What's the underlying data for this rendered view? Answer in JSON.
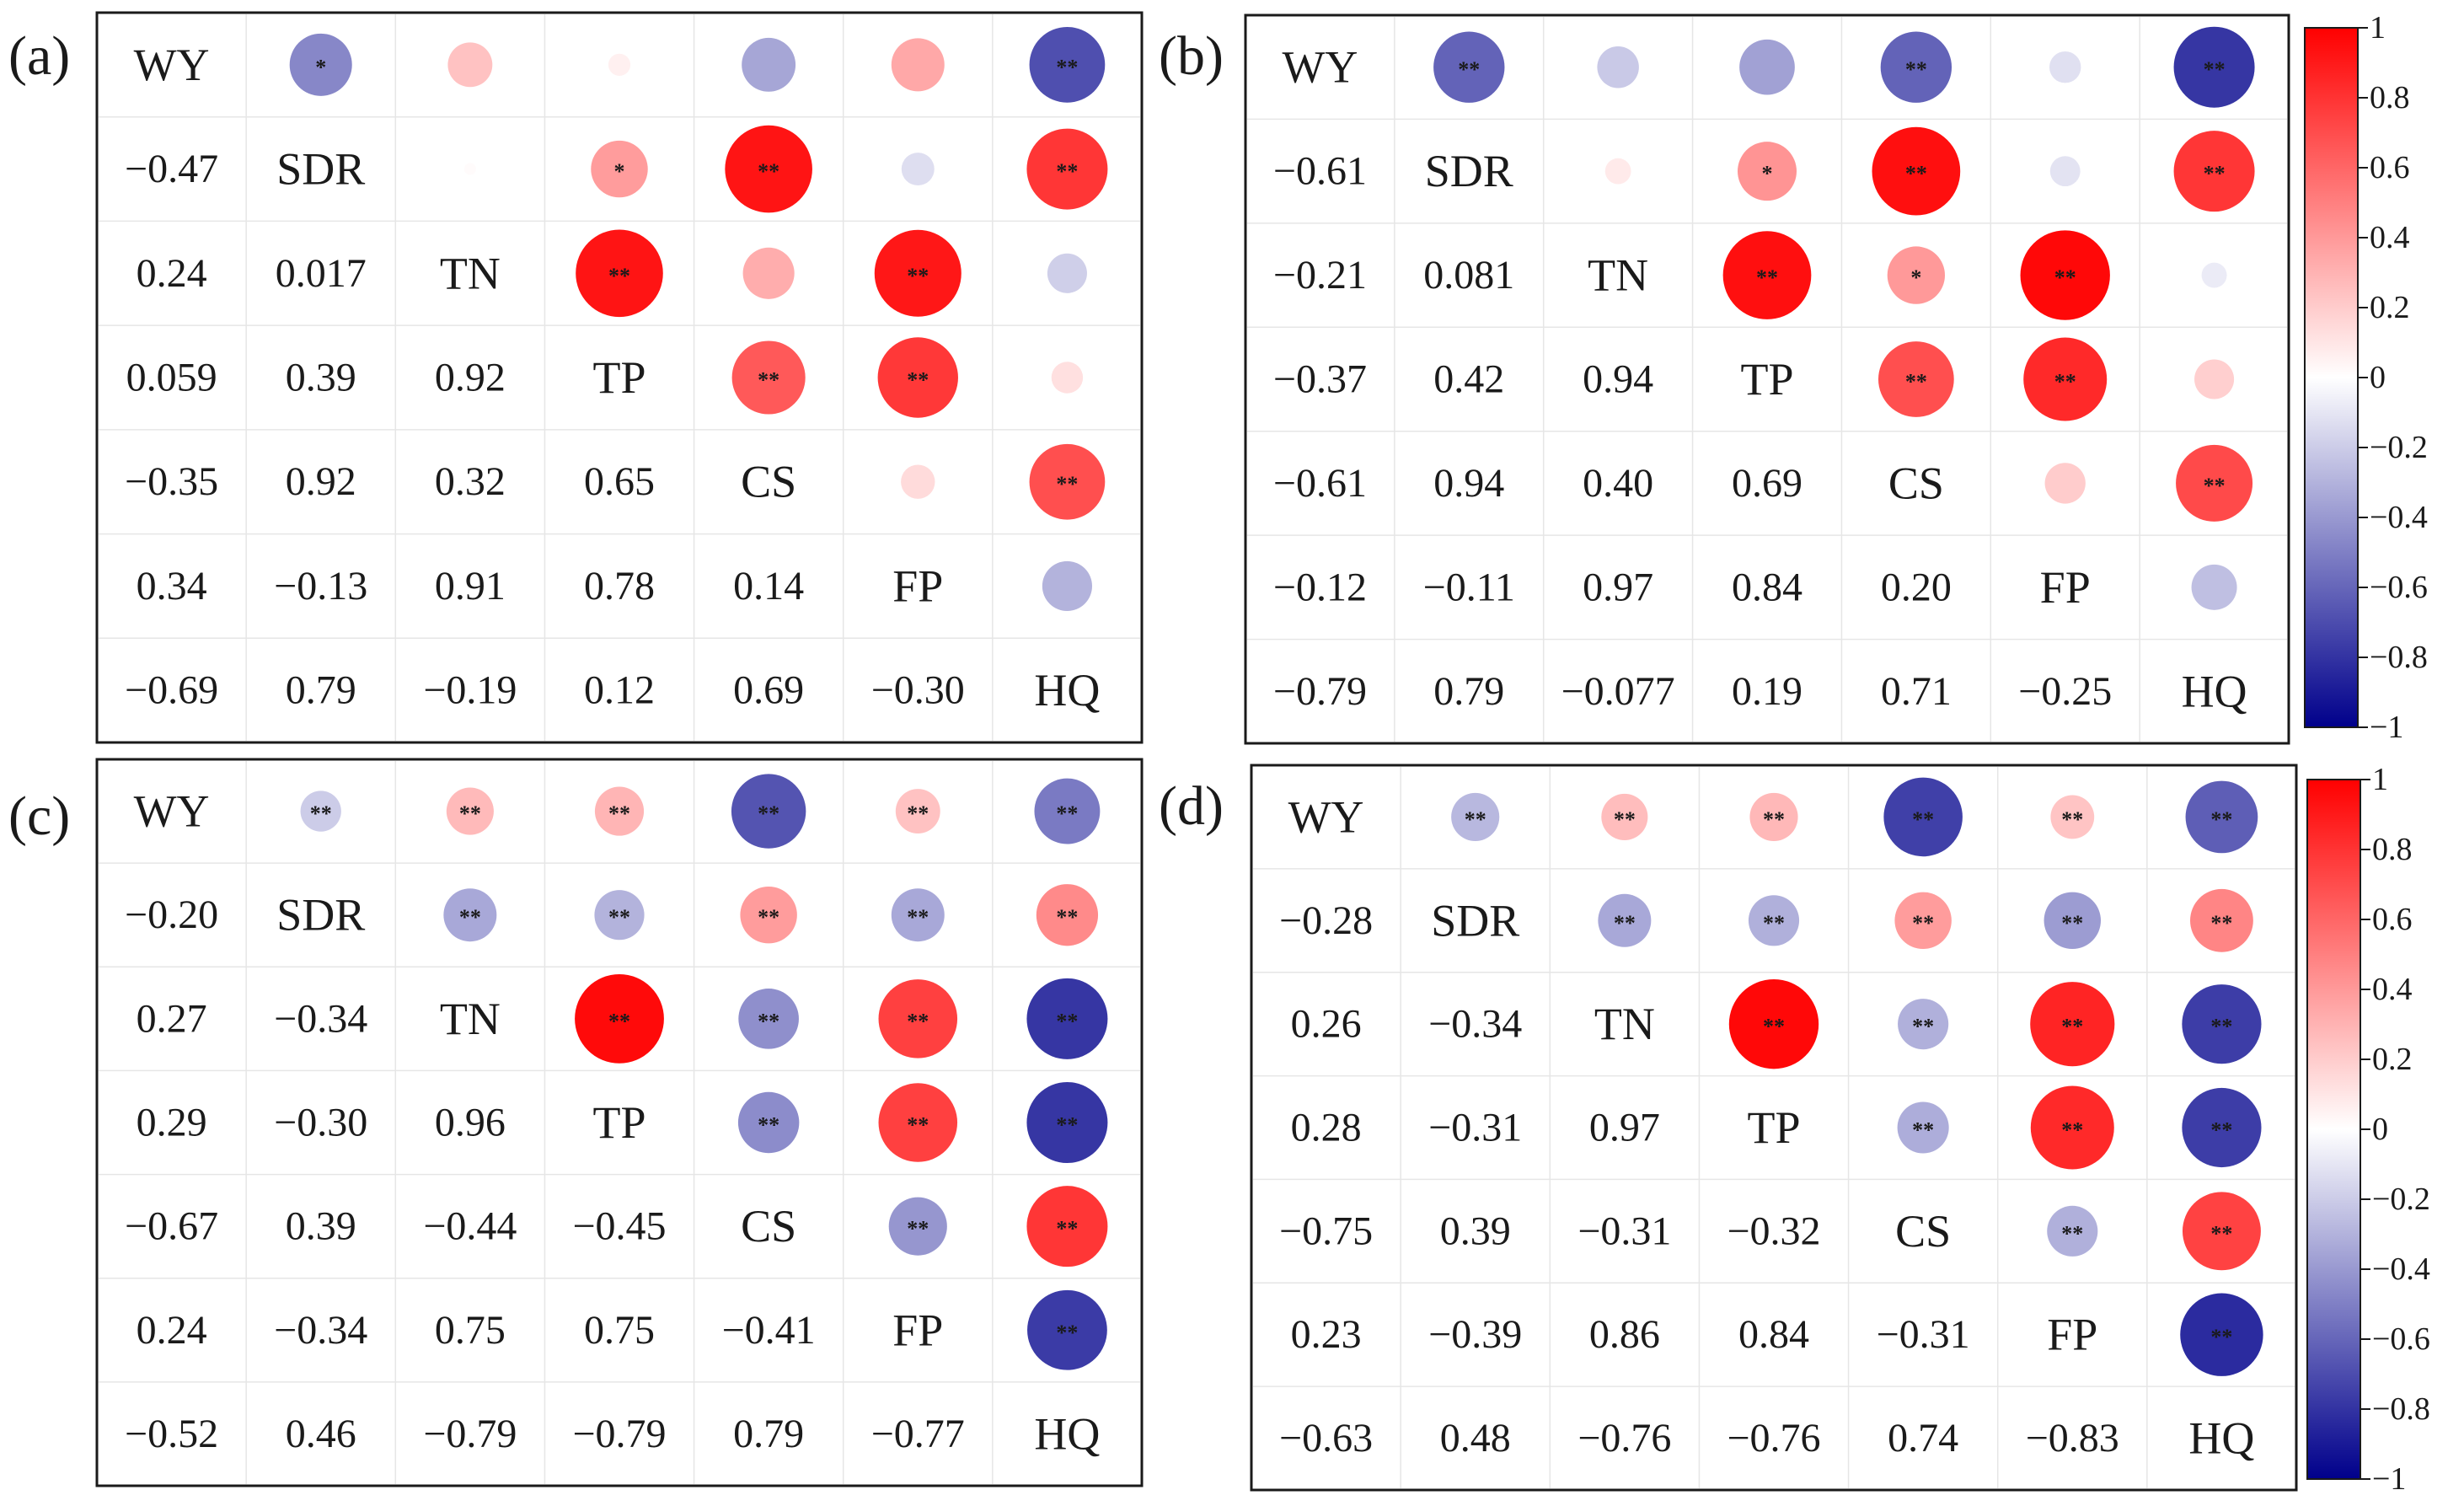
{
  "chart_data": [
    {
      "type": "heatmap",
      "panel_label": "(a)",
      "variables": [
        "WY",
        "SDR",
        "TN",
        "TP",
        "CS",
        "FP",
        "HQ"
      ],
      "upper": [
        {
          "row": 0,
          "col": 1,
          "value": -0.47,
          "sig": "*"
        },
        {
          "row": 0,
          "col": 2,
          "value": 0.24,
          "sig": ""
        },
        {
          "row": 0,
          "col": 3,
          "value": 0.059,
          "sig": ""
        },
        {
          "row": 0,
          "col": 4,
          "value": -0.35,
          "sig": ""
        },
        {
          "row": 0,
          "col": 5,
          "value": 0.34,
          "sig": ""
        },
        {
          "row": 0,
          "col": 6,
          "value": -0.69,
          "sig": "**"
        },
        {
          "row": 1,
          "col": 2,
          "value": 0.017,
          "sig": ""
        },
        {
          "row": 1,
          "col": 3,
          "value": 0.39,
          "sig": "*"
        },
        {
          "row": 1,
          "col": 4,
          "value": 0.92,
          "sig": "**"
        },
        {
          "row": 1,
          "col": 5,
          "value": -0.13,
          "sig": ""
        },
        {
          "row": 1,
          "col": 6,
          "value": 0.79,
          "sig": "**"
        },
        {
          "row": 2,
          "col": 3,
          "value": 0.92,
          "sig": "**"
        },
        {
          "row": 2,
          "col": 4,
          "value": 0.32,
          "sig": ""
        },
        {
          "row": 2,
          "col": 5,
          "value": 0.91,
          "sig": "**"
        },
        {
          "row": 2,
          "col": 6,
          "value": -0.19,
          "sig": ""
        },
        {
          "row": 3,
          "col": 4,
          "value": 0.65,
          "sig": "**"
        },
        {
          "row": 3,
          "col": 5,
          "value": 0.78,
          "sig": "**"
        },
        {
          "row": 3,
          "col": 6,
          "value": 0.12,
          "sig": ""
        },
        {
          "row": 4,
          "col": 5,
          "value": 0.14,
          "sig": ""
        },
        {
          "row": 4,
          "col": 6,
          "value": 0.69,
          "sig": "**"
        },
        {
          "row": 5,
          "col": 6,
          "value": -0.3,
          "sig": ""
        }
      ],
      "lower": [
        {
          "row": 1,
          "col": 0,
          "text": "−0.47"
        },
        {
          "row": 2,
          "col": 0,
          "text": "0.24"
        },
        {
          "row": 2,
          "col": 1,
          "text": "0.017"
        },
        {
          "row": 3,
          "col": 0,
          "text": "0.059"
        },
        {
          "row": 3,
          "col": 1,
          "text": "0.39"
        },
        {
          "row": 3,
          "col": 2,
          "text": "0.92"
        },
        {
          "row": 4,
          "col": 0,
          "text": "−0.35"
        },
        {
          "row": 4,
          "col": 1,
          "text": "0.92"
        },
        {
          "row": 4,
          "col": 2,
          "text": "0.32"
        },
        {
          "row": 4,
          "col": 3,
          "text": "0.65"
        },
        {
          "row": 5,
          "col": 0,
          "text": "0.34"
        },
        {
          "row": 5,
          "col": 1,
          "text": "−0.13"
        },
        {
          "row": 5,
          "col": 2,
          "text": "0.91"
        },
        {
          "row": 5,
          "col": 3,
          "text": "0.78"
        },
        {
          "row": 5,
          "col": 4,
          "text": "0.14"
        },
        {
          "row": 6,
          "col": 0,
          "text": "−0.69"
        },
        {
          "row": 6,
          "col": 1,
          "text": "0.79"
        },
        {
          "row": 6,
          "col": 2,
          "text": "−0.19"
        },
        {
          "row": 6,
          "col": 3,
          "text": "0.12"
        },
        {
          "row": 6,
          "col": 4,
          "text": "0.69"
        },
        {
          "row": 6,
          "col": 5,
          "text": "−0.30"
        }
      ]
    },
    {
      "type": "heatmap",
      "panel_label": "(b)",
      "variables": [
        "WY",
        "SDR",
        "TN",
        "TP",
        "CS",
        "FP",
        "HQ"
      ],
      "upper": [
        {
          "row": 0,
          "col": 1,
          "value": -0.61,
          "sig": "**"
        },
        {
          "row": 0,
          "col": 2,
          "value": -0.21,
          "sig": ""
        },
        {
          "row": 0,
          "col": 3,
          "value": -0.37,
          "sig": ""
        },
        {
          "row": 0,
          "col": 4,
          "value": -0.61,
          "sig": "**"
        },
        {
          "row": 0,
          "col": 5,
          "value": -0.12,
          "sig": ""
        },
        {
          "row": 0,
          "col": 6,
          "value": -0.79,
          "sig": "**"
        },
        {
          "row": 1,
          "col": 2,
          "value": 0.081,
          "sig": ""
        },
        {
          "row": 1,
          "col": 3,
          "value": 0.42,
          "sig": "*"
        },
        {
          "row": 1,
          "col": 4,
          "value": 0.94,
          "sig": "**"
        },
        {
          "row": 1,
          "col": 5,
          "value": -0.11,
          "sig": ""
        },
        {
          "row": 1,
          "col": 6,
          "value": 0.79,
          "sig": "**"
        },
        {
          "row": 2,
          "col": 3,
          "value": 0.94,
          "sig": "**"
        },
        {
          "row": 2,
          "col": 4,
          "value": 0.4,
          "sig": "*"
        },
        {
          "row": 2,
          "col": 5,
          "value": 0.97,
          "sig": "**"
        },
        {
          "row": 2,
          "col": 6,
          "value": -0.077,
          "sig": ""
        },
        {
          "row": 3,
          "col": 4,
          "value": 0.69,
          "sig": "**"
        },
        {
          "row": 3,
          "col": 5,
          "value": 0.84,
          "sig": "**"
        },
        {
          "row": 3,
          "col": 6,
          "value": 0.19,
          "sig": ""
        },
        {
          "row": 4,
          "col": 5,
          "value": 0.2,
          "sig": ""
        },
        {
          "row": 4,
          "col": 6,
          "value": 0.71,
          "sig": "**"
        },
        {
          "row": 5,
          "col": 6,
          "value": -0.25,
          "sig": ""
        }
      ],
      "lower": [
        {
          "row": 1,
          "col": 0,
          "text": "−0.61"
        },
        {
          "row": 2,
          "col": 0,
          "text": "−0.21"
        },
        {
          "row": 2,
          "col": 1,
          "text": "0.081"
        },
        {
          "row": 3,
          "col": 0,
          "text": "−0.37"
        },
        {
          "row": 3,
          "col": 1,
          "text": "0.42"
        },
        {
          "row": 3,
          "col": 2,
          "text": "0.94"
        },
        {
          "row": 4,
          "col": 0,
          "text": "−0.61"
        },
        {
          "row": 4,
          "col": 1,
          "text": "0.94"
        },
        {
          "row": 4,
          "col": 2,
          "text": "0.40"
        },
        {
          "row": 4,
          "col": 3,
          "text": "0.69"
        },
        {
          "row": 5,
          "col": 0,
          "text": "−0.12"
        },
        {
          "row": 5,
          "col": 1,
          "text": "−0.11"
        },
        {
          "row": 5,
          "col": 2,
          "text": "0.97"
        },
        {
          "row": 5,
          "col": 3,
          "text": "0.84"
        },
        {
          "row": 5,
          "col": 4,
          "text": "0.20"
        },
        {
          "row": 6,
          "col": 0,
          "text": "−0.79"
        },
        {
          "row": 6,
          "col": 1,
          "text": "0.79"
        },
        {
          "row": 6,
          "col": 2,
          "text": "−0.077"
        },
        {
          "row": 6,
          "col": 3,
          "text": "0.19"
        },
        {
          "row": 6,
          "col": 4,
          "text": "0.71"
        },
        {
          "row": 6,
          "col": 5,
          "text": "−0.25"
        }
      ]
    },
    {
      "type": "heatmap",
      "panel_label": "(c)",
      "variables": [
        "WY",
        "SDR",
        "TN",
        "TP",
        "CS",
        "FP",
        "HQ"
      ],
      "upper": [
        {
          "row": 0,
          "col": 1,
          "value": -0.2,
          "sig": "**"
        },
        {
          "row": 0,
          "col": 2,
          "value": 0.27,
          "sig": "**"
        },
        {
          "row": 0,
          "col": 3,
          "value": 0.29,
          "sig": "**"
        },
        {
          "row": 0,
          "col": 4,
          "value": -0.67,
          "sig": "**"
        },
        {
          "row": 0,
          "col": 5,
          "value": 0.24,
          "sig": "**"
        },
        {
          "row": 0,
          "col": 6,
          "value": -0.52,
          "sig": "**"
        },
        {
          "row": 1,
          "col": 2,
          "value": -0.34,
          "sig": "**"
        },
        {
          "row": 1,
          "col": 3,
          "value": -0.3,
          "sig": "**"
        },
        {
          "row": 1,
          "col": 4,
          "value": 0.39,
          "sig": "**"
        },
        {
          "row": 1,
          "col": 5,
          "value": -0.34,
          "sig": "**"
        },
        {
          "row": 1,
          "col": 6,
          "value": 0.46,
          "sig": "**"
        },
        {
          "row": 2,
          "col": 3,
          "value": 0.96,
          "sig": "**"
        },
        {
          "row": 2,
          "col": 4,
          "value": -0.44,
          "sig": "**"
        },
        {
          "row": 2,
          "col": 5,
          "value": 0.75,
          "sig": "**"
        },
        {
          "row": 2,
          "col": 6,
          "value": -0.79,
          "sig": "**"
        },
        {
          "row": 3,
          "col": 4,
          "value": -0.45,
          "sig": "**"
        },
        {
          "row": 3,
          "col": 5,
          "value": 0.75,
          "sig": "**"
        },
        {
          "row": 3,
          "col": 6,
          "value": -0.79,
          "sig": "**"
        },
        {
          "row": 4,
          "col": 5,
          "value": -0.41,
          "sig": "**"
        },
        {
          "row": 4,
          "col": 6,
          "value": 0.79,
          "sig": "**"
        },
        {
          "row": 5,
          "col": 6,
          "value": -0.77,
          "sig": "**"
        }
      ],
      "lower": [
        {
          "row": 1,
          "col": 0,
          "text": "−0.20"
        },
        {
          "row": 2,
          "col": 0,
          "text": "0.27"
        },
        {
          "row": 2,
          "col": 1,
          "text": "−0.34"
        },
        {
          "row": 3,
          "col": 0,
          "text": "0.29"
        },
        {
          "row": 3,
          "col": 1,
          "text": "−0.30"
        },
        {
          "row": 3,
          "col": 2,
          "text": "0.96"
        },
        {
          "row": 4,
          "col": 0,
          "text": "−0.67"
        },
        {
          "row": 4,
          "col": 1,
          "text": "0.39"
        },
        {
          "row": 4,
          "col": 2,
          "text": "−0.44"
        },
        {
          "row": 4,
          "col": 3,
          "text": "−0.45"
        },
        {
          "row": 5,
          "col": 0,
          "text": "0.24"
        },
        {
          "row": 5,
          "col": 1,
          "text": "−0.34"
        },
        {
          "row": 5,
          "col": 2,
          "text": "0.75"
        },
        {
          "row": 5,
          "col": 3,
          "text": "0.75"
        },
        {
          "row": 5,
          "col": 4,
          "text": "−0.41"
        },
        {
          "row": 6,
          "col": 0,
          "text": "−0.52"
        },
        {
          "row": 6,
          "col": 1,
          "text": "0.46"
        },
        {
          "row": 6,
          "col": 2,
          "text": "−0.79"
        },
        {
          "row": 6,
          "col": 3,
          "text": "−0.79"
        },
        {
          "row": 6,
          "col": 4,
          "text": "0.79"
        },
        {
          "row": 6,
          "col": 5,
          "text": "−0.77"
        }
      ]
    },
    {
      "type": "heatmap",
      "panel_label": "(d)",
      "variables": [
        "WY",
        "SDR",
        "TN",
        "TP",
        "CS",
        "FP",
        "HQ"
      ],
      "upper": [
        {
          "row": 0,
          "col": 1,
          "value": -0.28,
          "sig": "**"
        },
        {
          "row": 0,
          "col": 2,
          "value": 0.26,
          "sig": "**"
        },
        {
          "row": 0,
          "col": 3,
          "value": 0.28,
          "sig": "**"
        },
        {
          "row": 0,
          "col": 4,
          "value": -0.75,
          "sig": "**"
        },
        {
          "row": 0,
          "col": 5,
          "value": 0.23,
          "sig": "**"
        },
        {
          "row": 0,
          "col": 6,
          "value": -0.63,
          "sig": "**"
        },
        {
          "row": 1,
          "col": 2,
          "value": -0.34,
          "sig": "**"
        },
        {
          "row": 1,
          "col": 3,
          "value": -0.31,
          "sig": "**"
        },
        {
          "row": 1,
          "col": 4,
          "value": 0.39,
          "sig": "**"
        },
        {
          "row": 1,
          "col": 5,
          "value": -0.39,
          "sig": "**"
        },
        {
          "row": 1,
          "col": 6,
          "value": 0.48,
          "sig": "**"
        },
        {
          "row": 2,
          "col": 3,
          "value": 0.97,
          "sig": "**"
        },
        {
          "row": 2,
          "col": 4,
          "value": -0.31,
          "sig": "**"
        },
        {
          "row": 2,
          "col": 5,
          "value": 0.86,
          "sig": "**"
        },
        {
          "row": 2,
          "col": 6,
          "value": -0.76,
          "sig": "**"
        },
        {
          "row": 3,
          "col": 4,
          "value": -0.32,
          "sig": "**"
        },
        {
          "row": 3,
          "col": 5,
          "value": 0.84,
          "sig": "**"
        },
        {
          "row": 3,
          "col": 6,
          "value": -0.76,
          "sig": "**"
        },
        {
          "row": 4,
          "col": 5,
          "value": -0.31,
          "sig": "**"
        },
        {
          "row": 4,
          "col": 6,
          "value": 0.74,
          "sig": "**"
        },
        {
          "row": 5,
          "col": 6,
          "value": -0.83,
          "sig": "**"
        }
      ],
      "lower": [
        {
          "row": 1,
          "col": 0,
          "text": "−0.28"
        },
        {
          "row": 2,
          "col": 0,
          "text": "0.26"
        },
        {
          "row": 2,
          "col": 1,
          "text": "−0.34"
        },
        {
          "row": 3,
          "col": 0,
          "text": "0.28"
        },
        {
          "row": 3,
          "col": 1,
          "text": "−0.31"
        },
        {
          "row": 3,
          "col": 2,
          "text": "0.97"
        },
        {
          "row": 4,
          "col": 0,
          "text": "−0.75"
        },
        {
          "row": 4,
          "col": 1,
          "text": "0.39"
        },
        {
          "row": 4,
          "col": 2,
          "text": "−0.31"
        },
        {
          "row": 4,
          "col": 3,
          "text": "−0.32"
        },
        {
          "row": 5,
          "col": 0,
          "text": "0.23"
        },
        {
          "row": 5,
          "col": 1,
          "text": "−0.39"
        },
        {
          "row": 5,
          "col": 2,
          "text": "0.86"
        },
        {
          "row": 5,
          "col": 3,
          "text": "0.84"
        },
        {
          "row": 5,
          "col": 4,
          "text": "−0.31"
        },
        {
          "row": 6,
          "col": 0,
          "text": "−0.63"
        },
        {
          "row": 6,
          "col": 1,
          "text": "0.48"
        },
        {
          "row": 6,
          "col": 2,
          "text": "−0.76"
        },
        {
          "row": 6,
          "col": 3,
          "text": "−0.76"
        },
        {
          "row": 6,
          "col": 4,
          "text": "0.74"
        },
        {
          "row": 6,
          "col": 5,
          "text": "−0.83"
        }
      ]
    }
  ],
  "colorbar": {
    "range": [
      -1,
      1
    ],
    "tick_labels": [
      "1",
      "0.8",
      "0.6",
      "0.4",
      "0.2",
      "0",
      "−0.2",
      "−0.4",
      "−0.6",
      "−0.8",
      "−1"
    ],
    "color_negative": "#00008b",
    "color_zero": "#ffffff",
    "color_positive": "#ff0000"
  }
}
